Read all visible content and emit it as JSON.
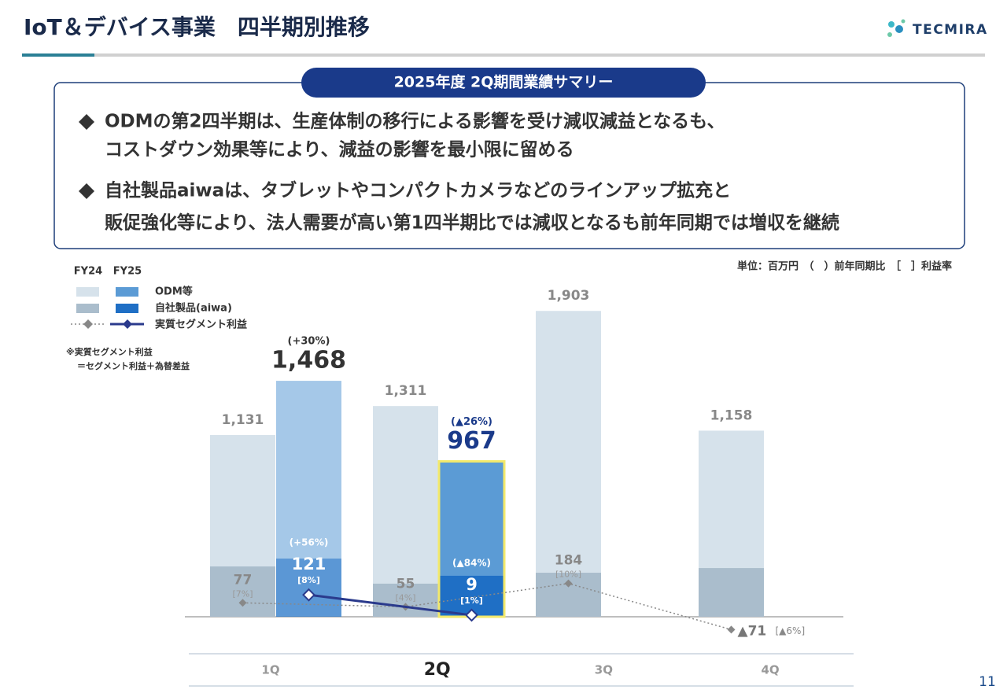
{
  "header": {
    "title": "IoT＆デバイス事業　四半期別推移",
    "logo": "TECMIRA",
    "page": "11"
  },
  "summary": {
    "title": "2025年度 2Q期間業績サマリー",
    "bullets": [
      [
        "ODMの第2四半期は、生産体制の移行による影響を受け減収減益となるも、",
        "コストダウン効果等により、減益の影響を最小限に留める"
      ],
      [
        "自社製品aiwaは、タブレットやコンパクトカメラなどのラインアップ拡充と",
        "販促強化等により、法人需要が高い第1四半期比では減収となるも前年同期では増収を継続"
      ]
    ]
  },
  "chart_data": {
    "type": "bar",
    "stacked": true,
    "unit_note": "単位：百万円　（　）前年同期比　［　］利益率",
    "note": [
      "※実質セグメント利益",
      "＝セグメント利益＋為替差益"
    ],
    "series_names": {
      "odm": "ODM等",
      "own": "自社製品(aiwa)",
      "profit": "実質セグメント利益"
    },
    "categories": [
      "1Q",
      "2Q",
      "3Q",
      "4Q"
    ],
    "highlight": "2Q",
    "highlight_border": "#f3e96b",
    "years": [
      {
        "name": "FY24",
        "odm_color": "#d6e2eb",
        "own_color": "#aabdcc",
        "line_color": "#888888",
        "line_style": "dotted",
        "totals": [
          1131,
          1311,
          1903,
          1158
        ],
        "total_labels": [
          "1,131",
          "1,311",
          "1,903",
          "1,158"
        ],
        "own": [
          313,
          206,
          274,
          303
        ],
        "profit": [
          77,
          55,
          184,
          -71
        ],
        "profit_labels": [
          "77",
          "55",
          "184",
          "▲71"
        ],
        "margin": [
          7,
          4,
          10,
          -6
        ],
        "margin_labels": [
          "[7%]",
          "[4%]",
          "[10%]",
          "[▲6%]"
        ]
      },
      {
        "name": "FY25",
        "odm_color": "#5b9bd5",
        "own_color": "#1f6fc5",
        "line_color": "#2a3a8c",
        "line_style": "solid",
        "totals": [
          1468,
          967,
          null,
          null
        ],
        "total_labels": [
          "1,468",
          "967",
          null,
          null
        ],
        "yoy_total": [
          30,
          -26,
          null,
          null
        ],
        "yoy_total_labels": [
          "(+30%)",
          "(▲26%)",
          null,
          null
        ],
        "own": [
          362,
          255,
          null,
          null
        ],
        "profit": [
          121,
          9,
          null,
          null
        ],
        "profit_labels": [
          "121",
          "9",
          null,
          null
        ],
        "yoy_profit": [
          56,
          -84,
          null,
          null
        ],
        "yoy_profit_labels": [
          "(+56%)",
          "(▲84%)",
          null,
          null
        ],
        "margin": [
          8,
          1,
          null,
          null
        ],
        "margin_labels": [
          "[8%]",
          "[1%]",
          null,
          null
        ]
      }
    ]
  }
}
